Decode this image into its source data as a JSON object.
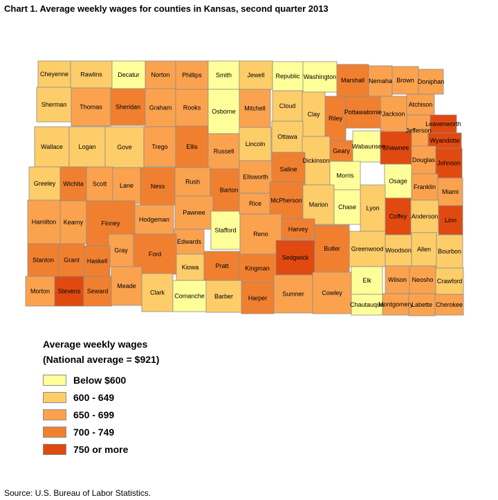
{
  "title": "Chart 1. Average weekly wages for counties in Kansas, second quarter 2013",
  "legend": {
    "title": "Average weekly wages",
    "subtitle": "(National average = $921)",
    "items": [
      {
        "label": "Below $600",
        "color": "#ffff99"
      },
      {
        "label": "600 - 649",
        "color": "#fdcd6a"
      },
      {
        "label": "650 - 699",
        "color": "#fba24f"
      },
      {
        "label": "700 - 749",
        "color": "#f08030"
      },
      {
        "label": "750 or more",
        "color": "#e04a10"
      }
    ]
  },
  "source": "Source: U.S. Bureau of Labor Statistics.",
  "counties": [
    {
      "name": "Cheyenne",
      "class": 1
    },
    {
      "name": "Rawlins",
      "class": 1
    },
    {
      "name": "Decatur",
      "class": 0
    },
    {
      "name": "Norton",
      "class": 2
    },
    {
      "name": "Phillips",
      "class": 2
    },
    {
      "name": "Smith",
      "class": 0
    },
    {
      "name": "Jewell",
      "class": 1
    },
    {
      "name": "Republic",
      "class": 0
    },
    {
      "name": "Washington",
      "class": 0
    },
    {
      "name": "Marshall",
      "class": 3
    },
    {
      "name": "Nemaha",
      "class": 2
    },
    {
      "name": "Brown",
      "class": 2
    },
    {
      "name": "Doniphan",
      "class": 2
    },
    {
      "name": "Sherman",
      "class": 1
    },
    {
      "name": "Thomas",
      "class": 2
    },
    {
      "name": "Sheridan",
      "class": 3
    },
    {
      "name": "Graham",
      "class": 2
    },
    {
      "name": "Rooks",
      "class": 2
    },
    {
      "name": "Osborne",
      "class": 0
    },
    {
      "name": "Mitchell",
      "class": 2
    },
    {
      "name": "Cloud",
      "class": 1
    },
    {
      "name": "Clay",
      "class": 1
    },
    {
      "name": "Riley",
      "class": 3
    },
    {
      "name": "Pottawatomie",
      "class": 3
    },
    {
      "name": "Jackson",
      "class": 2
    },
    {
      "name": "Atchison",
      "class": 2
    },
    {
      "name": "Jefferson",
      "class": 2
    },
    {
      "name": "Leavenworth",
      "class": 4
    },
    {
      "name": "Wyandotte",
      "class": 4
    },
    {
      "name": "Wallace",
      "class": 1
    },
    {
      "name": "Logan",
      "class": 1
    },
    {
      "name": "Gove",
      "class": 1
    },
    {
      "name": "Trego",
      "class": 2
    },
    {
      "name": "Ellis",
      "class": 3
    },
    {
      "name": "Russell",
      "class": 2
    },
    {
      "name": "Lincoln",
      "class": 1
    },
    {
      "name": "Ottawa",
      "class": 1
    },
    {
      "name": "Dickinson",
      "class": 1
    },
    {
      "name": "Geary",
      "class": 3
    },
    {
      "name": "Wabaunsee",
      "class": 0
    },
    {
      "name": "Shawnee",
      "class": 4
    },
    {
      "name": "Douglas",
      "class": 2
    },
    {
      "name": "Johnson",
      "class": 4
    },
    {
      "name": "Greeley",
      "class": 1
    },
    {
      "name": "Wichita",
      "class": 3
    },
    {
      "name": "Scott",
      "class": 2
    },
    {
      "name": "Lane",
      "class": 2
    },
    {
      "name": "Ness",
      "class": 3
    },
    {
      "name": "Rush",
      "class": 2
    },
    {
      "name": "Barton",
      "class": 3
    },
    {
      "name": "Ellsworth",
      "class": 2
    },
    {
      "name": "Saline",
      "class": 3
    },
    {
      "name": "Morris",
      "class": 0
    },
    {
      "name": "Osage",
      "class": 0
    },
    {
      "name": "Franklin",
      "class": 2
    },
    {
      "name": "Miami",
      "class": 2
    },
    {
      "name": "Hamilton",
      "class": 2
    },
    {
      "name": "Kearny",
      "class": 2
    },
    {
      "name": "Finney",
      "class": 3
    },
    {
      "name": "Hodgeman",
      "class": 2
    },
    {
      "name": "Pawnee",
      "class": 2
    },
    {
      "name": "Stafford",
      "class": 0
    },
    {
      "name": "Rice",
      "class": 2
    },
    {
      "name": "McPherson",
      "class": 3
    },
    {
      "name": "Marion",
      "class": 1
    },
    {
      "name": "Chase",
      "class": 0
    },
    {
      "name": "Lyon",
      "class": 1
    },
    {
      "name": "Coffey",
      "class": 4
    },
    {
      "name": "Anderson",
      "class": 1
    },
    {
      "name": "Linn",
      "class": 4
    },
    {
      "name": "Gray",
      "class": 2
    },
    {
      "name": "Edwards",
      "class": 2
    },
    {
      "name": "Reno",
      "class": 2
    },
    {
      "name": "Harvey",
      "class": 3
    },
    {
      "name": "Greenwood",
      "class": 1
    },
    {
      "name": "Woodson",
      "class": 1
    },
    {
      "name": "Allen",
      "class": 1
    },
    {
      "name": "Bourbon",
      "class": 1
    },
    {
      "name": "Stanton",
      "class": 3
    },
    {
      "name": "Grant",
      "class": 3
    },
    {
      "name": "Haskell",
      "class": 3
    },
    {
      "name": "Ford",
      "class": 3
    },
    {
      "name": "Kiowa",
      "class": 1
    },
    {
      "name": "Pratt",
      "class": 3
    },
    {
      "name": "Kingman",
      "class": 3
    },
    {
      "name": "Sedgwick",
      "class": 4
    },
    {
      "name": "Butler",
      "class": 3
    },
    {
      "name": "Wilson",
      "class": 2
    },
    {
      "name": "Neosho",
      "class": 2
    },
    {
      "name": "Crawford",
      "class": 1
    },
    {
      "name": "Morton",
      "class": 2
    },
    {
      "name": "Stevens",
      "class": 4
    },
    {
      "name": "Seward",
      "class": 3
    },
    {
      "name": "Meade",
      "class": 2
    },
    {
      "name": "Clark",
      "class": 1
    },
    {
      "name": "Comanche",
      "class": 0
    },
    {
      "name": "Barber",
      "class": 1
    },
    {
      "name": "Harper",
      "class": 3
    },
    {
      "name": "Sumner",
      "class": 2
    },
    {
      "name": "Cowley",
      "class": 2
    },
    {
      "name": "Elk",
      "class": 0
    },
    {
      "name": "Chautauqua",
      "class": 0
    },
    {
      "name": "Montgomery",
      "class": 2
    },
    {
      "name": "Labette",
      "class": 2
    },
    {
      "name": "Cherokee",
      "class": 2
    }
  ]
}
